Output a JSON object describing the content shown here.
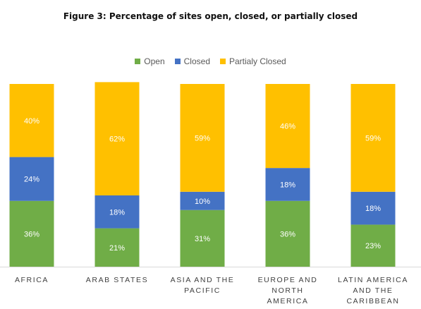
{
  "chart_data": {
    "type": "bar",
    "stacked": true,
    "percent_stacked": true,
    "title": "Figure 3: Percentage of sites open, closed, or partially closed",
    "legend_position": "top",
    "grid": false,
    "ylim": [
      0,
      100
    ],
    "categories": [
      [
        "AFRICA"
      ],
      [
        "ARAB STATES"
      ],
      [
        "ASIA AND THE",
        "PACIFIC"
      ],
      [
        "EUROPE AND",
        "NORTH",
        "AMERICA"
      ],
      [
        "LATIN AMERICA",
        "AND THE",
        "CARIBBEAN"
      ]
    ],
    "series": [
      {
        "name": "Open",
        "color": "#70AD47",
        "values": [
          36,
          21,
          31,
          36,
          23
        ],
        "labels": [
          "36%",
          "21%",
          "31%",
          "36%",
          "23%"
        ]
      },
      {
        "name": "Closed",
        "color": "#4472C4",
        "values": [
          24,
          18,
          10,
          18,
          18
        ],
        "labels": [
          "24%",
          "18%",
          "10%",
          "18%",
          "18%"
        ]
      },
      {
        "name": "Partialy Closed",
        "color": "#FFC000",
        "values": [
          40,
          62,
          59,
          46,
          59
        ],
        "labels": [
          "40%",
          "62%",
          "59%",
          "46%",
          "59%"
        ]
      }
    ]
  }
}
